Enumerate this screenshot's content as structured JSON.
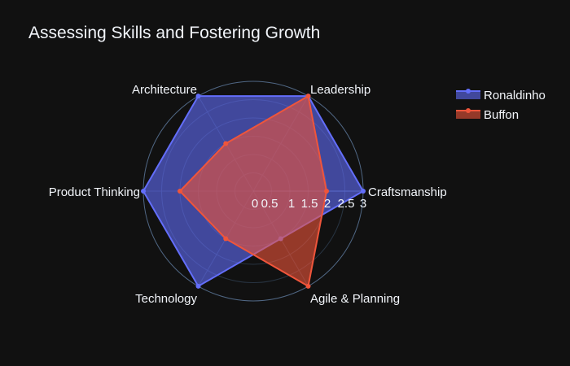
{
  "chart_data": {
    "type": "radar",
    "title": "Assessing Skills and Fostering Growth",
    "categories": [
      "Craftsmanship",
      "Leadership",
      "Architecture",
      "Product Thinking",
      "Technology",
      "Agile & Planning"
    ],
    "radial_range": [
      0,
      3
    ],
    "radial_ticks": [
      "0",
      "0.5",
      "1",
      "1.5",
      "2",
      "2.5",
      "3"
    ],
    "grid": true,
    "legend_position": "top-right",
    "series": [
      {
        "name": "Ronaldinho",
        "values": [
          3,
          3,
          3,
          3,
          3,
          1.5
        ],
        "color": "#636efa"
      },
      {
        "name": "Buffon",
        "values": [
          2,
          3,
          1.5,
          2,
          1.5,
          3
        ],
        "color": "#ef553b"
      }
    ]
  }
}
